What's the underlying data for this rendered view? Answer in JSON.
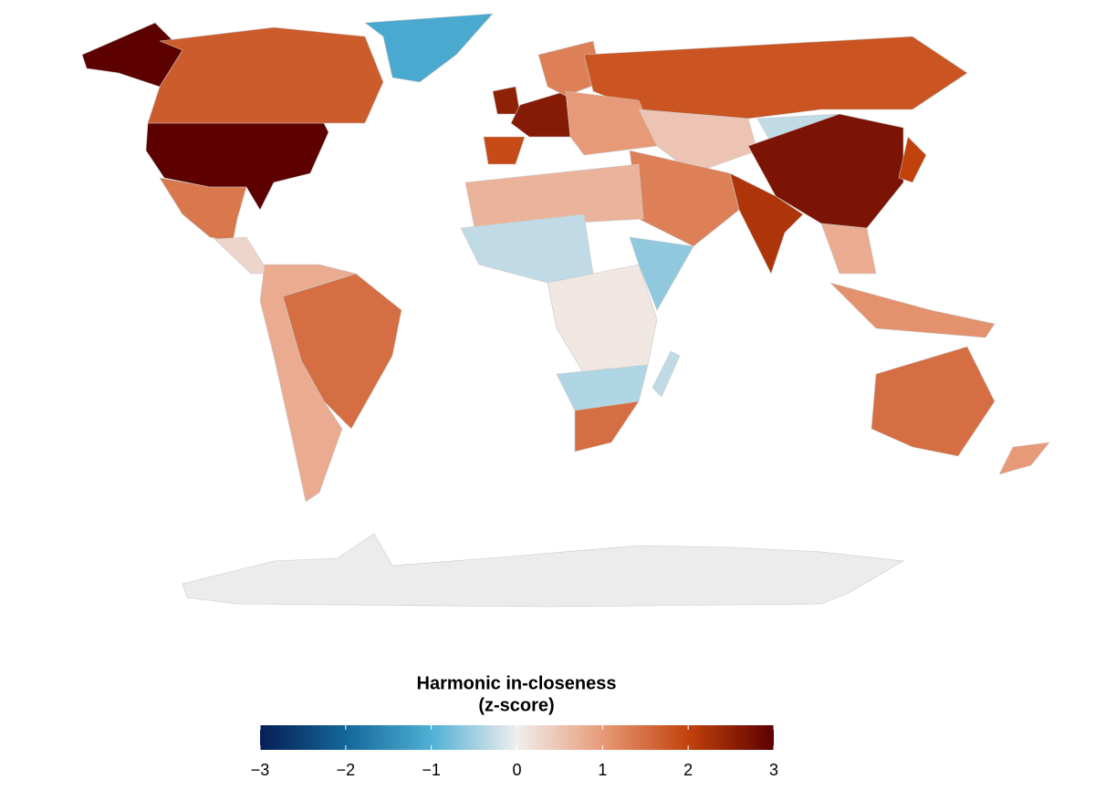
{
  "map": {
    "values": [
      3,
      3,
      1.7,
      -1.1,
      1.4,
      0.3,
      1.5,
      0.8,
      2.5,
      2.6,
      1.9,
      1.3,
      1.8,
      1.0,
      0.5,
      -0.3,
      2.7,
      2.2,
      1.3,
      2.0,
      0.8,
      1.1,
      1.5,
      1.0,
      0.7,
      -0.3,
      0.1,
      -0.6,
      -0.4,
      1.5,
      -0.3
    ],
    "legend": {
      "title": "Harmonic in-closeness",
      "subtitle": "(z-score)",
      "range": [
        -3,
        3
      ],
      "ticks": [
        {
          "value": -3,
          "label": "−3"
        },
        {
          "value": -2,
          "label": "−2"
        },
        {
          "value": -1,
          "label": "−1"
        },
        0,
        1,
        2,
        3
      ],
      "colorscale": [
        {
          "value": -3,
          "color": "#061f55"
        },
        {
          "value": -2,
          "color": "#14679a"
        },
        {
          "value": -1,
          "color": "#4fb0d4"
        },
        {
          "value": 0,
          "color": "#f1eeee"
        },
        {
          "value": 1,
          "color": "#e89a78"
        },
        {
          "value": 2,
          "color": "#c2420c"
        },
        {
          "value": 3,
          "color": "#5c0000"
        }
      ]
    }
  }
}
